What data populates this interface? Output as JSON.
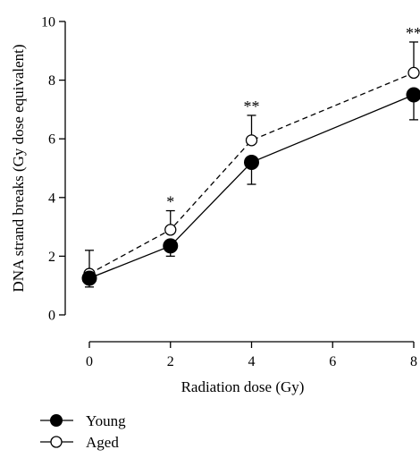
{
  "chart_data": {
    "type": "line",
    "title": "",
    "xlabel": "Radiation dose (Gy)",
    "ylabel": "DNA strand breaks (Gy dose equivalent)",
    "xlim": [
      0,
      8
    ],
    "ylim": [
      0,
      10
    ],
    "x_ticks": [
      "0",
      "2",
      "4",
      "6",
      "8"
    ],
    "y_ticks": [
      "0",
      "2",
      "4",
      "6",
      "8",
      "10"
    ],
    "x": [
      0,
      2,
      4,
      8
    ],
    "grid": false,
    "legend_position": "bottom-left",
    "series": [
      {
        "name": "Young",
        "values": [
          1.25,
          2.35,
          5.2,
          7.5
        ],
        "error": [
          0.3,
          0.35,
          0.75,
          0.85
        ],
        "error_direction": "down",
        "marker": "filled-circle",
        "line_style": "solid",
        "color": "#000000"
      },
      {
        "name": "Aged",
        "values": [
          1.4,
          2.9,
          5.95,
          8.25
        ],
        "error": [
          0.8,
          0.65,
          0.85,
          1.05
        ],
        "error_direction": "up",
        "marker": "open-circle",
        "line_style": "dashed",
        "color": "#000000"
      }
    ],
    "annotations": [
      {
        "x": 2,
        "y": 3.55,
        "text": "*"
      },
      {
        "x": 4,
        "y": 6.8,
        "text": "**"
      },
      {
        "x": 8,
        "y": 9.3,
        "text": "**"
      }
    ]
  }
}
